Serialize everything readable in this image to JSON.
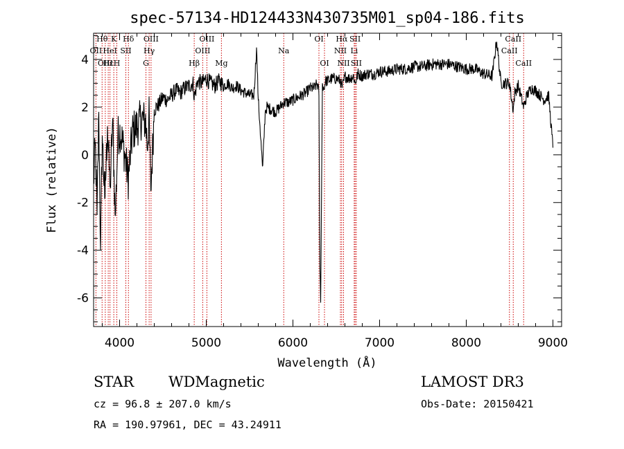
{
  "chart_data": {
    "type": "line",
    "title": "spec-57134-HD124433N430735M01_sp04-186.fits",
    "xlabel": "Wavelength (Å)",
    "ylabel": "Flux (relative)",
    "xlim": [
      3700,
      9100
    ],
    "ylim": [
      -7.2,
      5.1
    ],
    "xticks": [
      4000,
      5000,
      6000,
      7000,
      8000,
      9000
    ],
    "yticks": [
      -6,
      -4,
      -2,
      0,
      2,
      4
    ],
    "grid": false,
    "legend": "none",
    "line_color": "#000000",
    "marker_color": "#cc0000",
    "series": [
      {
        "x": [
          3700,
          3720,
          3740,
          3760,
          3780,
          3800,
          3830,
          3860,
          3890,
          3920,
          3950,
          3980,
          4010,
          4050,
          4100,
          4150,
          4200,
          4250,
          4300,
          4320,
          4340,
          4360,
          4400,
          4450,
          4500,
          4550,
          4600,
          4650,
          4700,
          4750,
          4800,
          4850,
          4861,
          4900,
          4950,
          5000,
          5050,
          5100,
          5150,
          5200,
          5250,
          5300,
          5350,
          5400,
          5450,
          5500,
          5550,
          5580,
          5600,
          5620,
          5650,
          5680,
          5700,
          5750,
          5800,
          5850,
          5890,
          5950,
          6000,
          6050,
          6100,
          6150,
          6200,
          6250,
          6280,
          6300,
          6310,
          6320,
          6340,
          6363,
          6370,
          6400,
          6450,
          6500,
          6550,
          6563,
          6583,
          6600,
          6650,
          6700,
          6717,
          6750,
          6800,
          6850,
          6900,
          6950,
          7000,
          7100,
          7200,
          7300,
          7400,
          7500,
          7600,
          7700,
          7800,
          7900,
          8000,
          8100,
          8200,
          8300,
          8350,
          8400,
          8450,
          8500,
          8520,
          8542,
          8560,
          8600,
          8662,
          8700,
          8750,
          8800,
          8850,
          8900,
          8950,
          9000
        ],
        "y": [
          -1.2,
          0.5,
          -2.5,
          1.8,
          -4.0,
          0.8,
          -2.0,
          1.2,
          -1.5,
          1.5,
          -2.8,
          0.8,
          1.0,
          0.2,
          -1.0,
          1.0,
          1.2,
          1.5,
          1.4,
          0.4,
          1.6,
          -1.5,
          1.9,
          2.1,
          2.4,
          2.3,
          2.5,
          2.7,
          2.6,
          2.8,
          2.9,
          3.0,
          2.4,
          3.1,
          3.0,
          3.2,
          3.0,
          2.9,
          3.1,
          2.9,
          3.0,
          2.8,
          2.9,
          2.7,
          2.6,
          2.5,
          2.5,
          4.5,
          2.3,
          1.2,
          -0.6,
          1.8,
          2.0,
          1.9,
          1.8,
          2.0,
          2.2,
          2.2,
          2.3,
          2.4,
          2.5,
          2.6,
          2.8,
          2.8,
          3.0,
          2.6,
          -4.5,
          -6.2,
          3.0,
          2.7,
          3.1,
          3.1,
          3.2,
          3.2,
          3.1,
          2.8,
          3.0,
          3.3,
          3.2,
          3.3,
          3.0,
          3.4,
          3.3,
          3.4,
          3.4,
          3.4,
          3.5,
          3.5,
          3.6,
          3.6,
          3.7,
          3.7,
          3.8,
          3.8,
          3.8,
          3.7,
          3.6,
          3.6,
          3.4,
          3.3,
          4.8,
          3.0,
          3.0,
          3.0,
          2.4,
          1.9,
          2.6,
          2.9,
          2.0,
          2.5,
          2.8,
          2.7,
          2.5,
          2.3,
          2.5,
          0.3
        ]
      }
    ],
    "line_markers": [
      {
        "x": 3727,
        "row": 1,
        "text": "OII"
      },
      {
        "x": 3798,
        "row": 0,
        "text": "Hθ"
      },
      {
        "x": 3835,
        "row": 2,
        "text": "OIII"
      },
      {
        "x": 3869,
        "row": 2,
        "text": "Hε"
      },
      {
        "x": 3889,
        "row": 1,
        "text": "HeI"
      },
      {
        "x": 3933,
        "row": 0,
        "text": "K"
      },
      {
        "x": 3968,
        "row": 2,
        "text": "H"
      },
      {
        "x": 4072,
        "row": 1,
        "text": "SII"
      },
      {
        "x": 4102,
        "row": 0,
        "text": "Hδ"
      },
      {
        "x": 4304,
        "row": 2,
        "text": "G"
      },
      {
        "x": 4341,
        "row": 1,
        "text": "Hγ"
      },
      {
        "x": 4363,
        "row": 0,
        "text": "OIII"
      },
      {
        "x": 4861,
        "row": 2,
        "text": "Hβ"
      },
      {
        "x": 4959,
        "row": 1,
        "text": "OIII"
      },
      {
        "x": 5007,
        "row": 0,
        "text": "OIII"
      },
      {
        "x": 5175,
        "row": 2,
        "text": "Mg"
      },
      {
        "x": 5894,
        "row": 1,
        "text": "Na"
      },
      {
        "x": 6300,
        "row": 0,
        "text": "OI"
      },
      {
        "x": 6364,
        "row": 2,
        "text": "OI"
      },
      {
        "x": 6548,
        "row": 1,
        "text": "NII"
      },
      {
        "x": 6563,
        "row": 0,
        "text": "Hα"
      },
      {
        "x": 6584,
        "row": 2,
        "text": "NII"
      },
      {
        "x": 6707,
        "row": 1,
        "text": "Li"
      },
      {
        "x": 6717,
        "row": 0,
        "text": "SII"
      },
      {
        "x": 6731,
        "row": 2,
        "text": "SII"
      },
      {
        "x": 8498,
        "row": 1,
        "text": "CaII"
      },
      {
        "x": 8542,
        "row": 0,
        "text": "CaII"
      },
      {
        "x": 8662,
        "row": 2,
        "text": "CaII"
      }
    ]
  },
  "info": {
    "class": "STAR",
    "subclass": "WDMagnetic",
    "survey": "LAMOST DR3",
    "cz": "cz = 96.8 ± 207.0 km/s",
    "obs_date": "Obs-Date: 20150421",
    "radec": "RA = 190.97961, DEC =  43.24911"
  }
}
